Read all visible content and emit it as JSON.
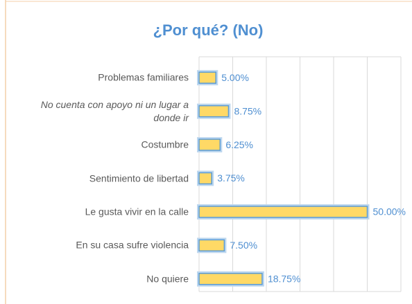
{
  "chart_data": {
    "type": "bar",
    "orientation": "horizontal",
    "title": "¿Por qué? (No)",
    "categories": [
      "Problemas familiares",
      "No cuenta con apoyo ni un lugar a donde ir",
      "Costumbre",
      "Sentimiento de libertad",
      "Le gusta vivir en la calle",
      "En su casa sufre violencia",
      "No quiere"
    ],
    "values": [
      5,
      8.75,
      6.25,
      3.75,
      50,
      7.5,
      18.75
    ],
    "value_labels": [
      "5.00%",
      "8.75%",
      "6.25%",
      "3.75%",
      "50.00%",
      "7.50%",
      "18.75%"
    ],
    "color": "#ffd966",
    "xlim": [
      0,
      60
    ],
    "xticks": [
      0,
      10,
      20,
      30,
      40,
      50,
      60
    ],
    "grid": true
  }
}
